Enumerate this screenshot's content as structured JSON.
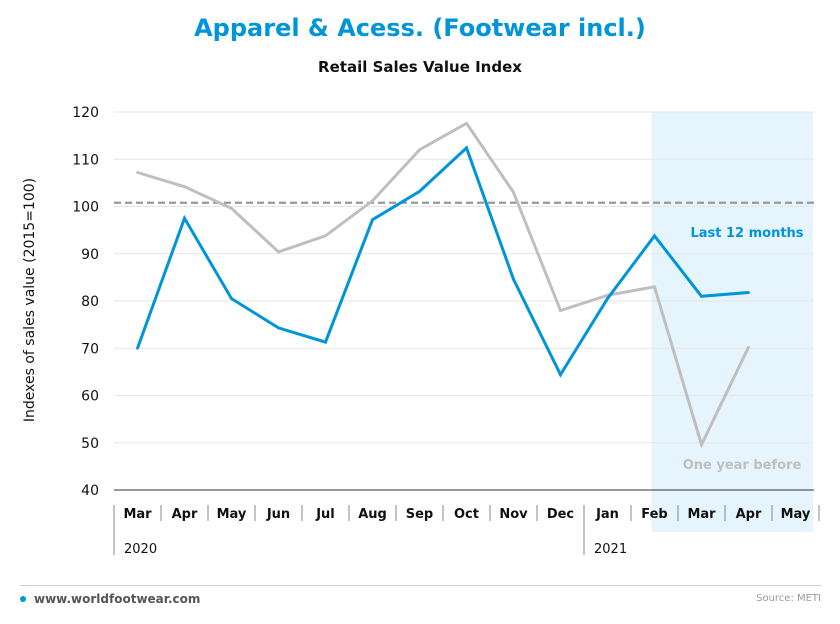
{
  "header": {
    "title": "Apparel & Acess. (Footwear incl.)",
    "subtitle": "Retail Sales Value Index"
  },
  "footer": {
    "website": "www.worldfootwear.com",
    "source": "Source: METI"
  },
  "colors": {
    "title": "#0095d9",
    "last12": "#0095d9",
    "yearBefore": "#bfbfbf",
    "highlight": "#e6f4fd",
    "reference": "#999999"
  },
  "chart_data": {
    "type": "line",
    "title": "Retail Sales Value Index",
    "ylabel": "Indexes of sales value (2015=100)",
    "xlabel": "",
    "ylim": [
      40,
      120
    ],
    "yticks": [
      40,
      50,
      60,
      70,
      80,
      90,
      100,
      110,
      120
    ],
    "grid": true,
    "categories": [
      "Mar",
      "Apr",
      "May",
      "Jun",
      "Jul",
      "Aug",
      "Sep",
      "Oct",
      "Nov",
      "Dec",
      "Jan",
      "Feb",
      "Mar",
      "Apr",
      "May"
    ],
    "year_groups": [
      {
        "label": "2020",
        "start": 0
      },
      {
        "label": "2021",
        "start": 10
      }
    ],
    "highlight_categories": [
      "Feb",
      "May"
    ],
    "reference_line": 100.8,
    "series": [
      {
        "name": "Last 12 months",
        "key": "last12",
        "values": [
          70.0,
          97.5,
          80.5,
          74.3,
          71.3,
          97.2,
          103.2,
          112.4,
          84.6,
          64.4,
          80.5,
          93.8,
          81.0,
          81.8,
          null
        ]
      },
      {
        "name": "One year before",
        "key": "yearBefore",
        "values": [
          107.2,
          104.2,
          99.6,
          90.4,
          93.8,
          101.2,
          112.0,
          117.6,
          103.0,
          78.0,
          81.2,
          83.0,
          49.6,
          70.2,
          null
        ]
      }
    ]
  }
}
